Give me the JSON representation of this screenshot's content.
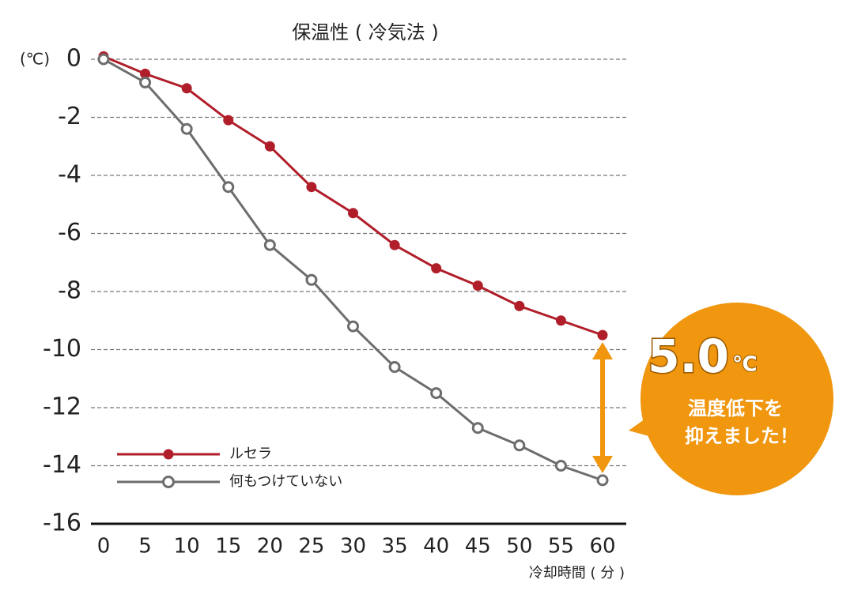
{
  "chart_data": {
    "type": "line",
    "title": "保温性 ( 冷気法 )",
    "y_label": "(℃)",
    "x_label": "冷却時間 ( 分 )",
    "x": [
      0,
      5,
      10,
      15,
      20,
      25,
      30,
      35,
      40,
      45,
      50,
      55,
      60
    ],
    "xlim": [
      0,
      60
    ],
    "xticks": [
      0,
      5,
      10,
      15,
      20,
      25,
      30,
      35,
      40,
      45,
      50,
      55,
      60
    ],
    "ylim": [
      -16,
      0
    ],
    "yticks": [
      0,
      -2,
      -4,
      -6,
      -8,
      -10,
      -12,
      -14,
      -16
    ],
    "grid": true,
    "legend": "lower-left",
    "series": [
      {
        "name": "ルセラ",
        "color": "#b01e2a",
        "marker": "filled",
        "values": [
          0.1,
          -0.5,
          -1.0,
          -2.1,
          -3.0,
          -4.4,
          -5.3,
          -6.4,
          -7.2,
          -7.8,
          -8.5,
          -9.0,
          -9.5
        ]
      },
      {
        "name": "何もつけていない",
        "color": "#6d6d6d",
        "marker": "open",
        "values": [
          0,
          -0.8,
          -2.4,
          -4.4,
          -6.4,
          -7.6,
          -9.2,
          -10.6,
          -11.5,
          -12.7,
          -13.3,
          -14.0,
          -14.5
        ]
      }
    ],
    "callout": {
      "value": "5.0",
      "unit": "℃",
      "lines": [
        "温度低下を",
        "抑えました！"
      ],
      "color": "#f0960f"
    }
  }
}
